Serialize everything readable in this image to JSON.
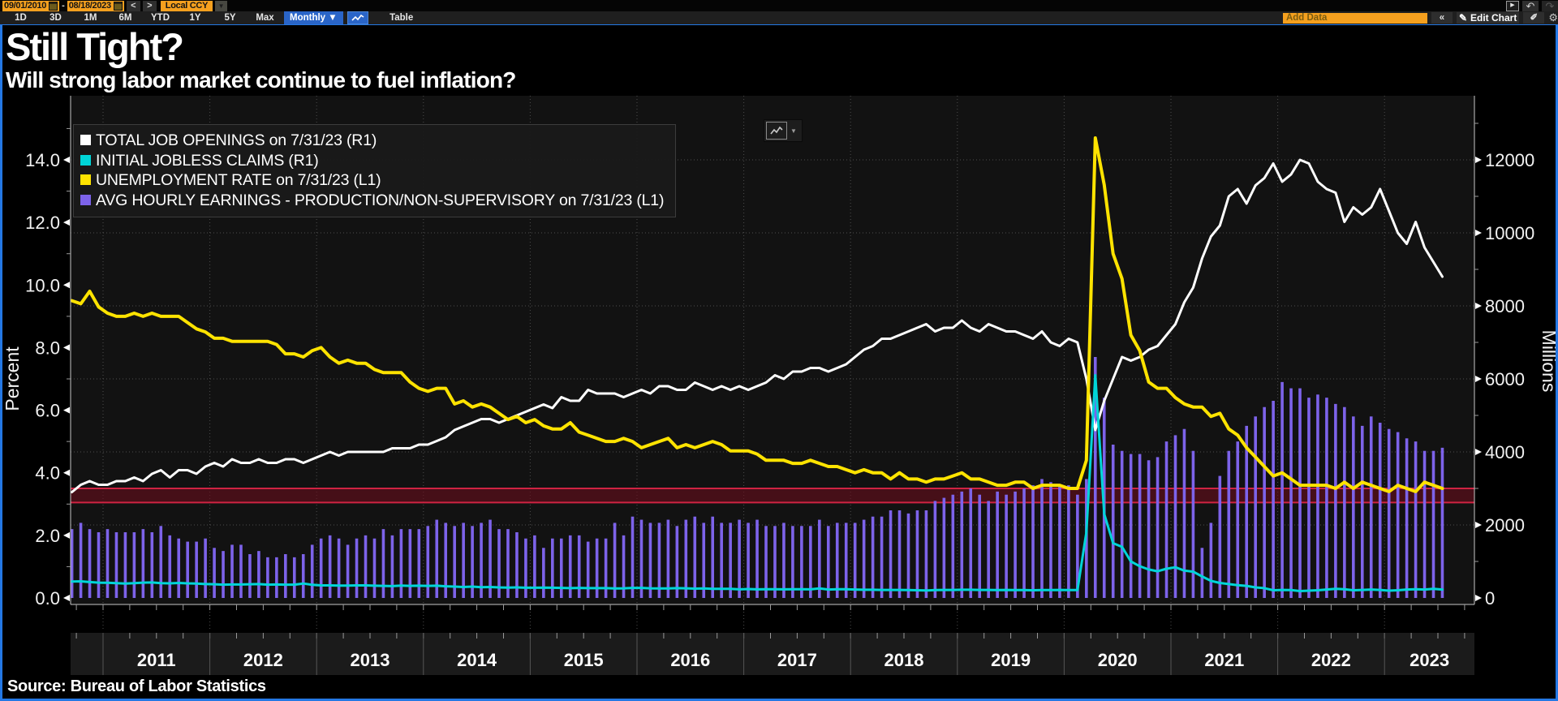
{
  "toolbar": {
    "date_start": "09/01/2010",
    "date_separator": "-",
    "date_end": "08/18/2023",
    "prev_label": "<",
    "next_label": ">",
    "currency": "Local CCY",
    "currency_arrow": "▼",
    "range_buttons": [
      "1D",
      "3D",
      "1M",
      "6M",
      "YTD",
      "1Y",
      "5Y",
      "Max"
    ],
    "period_selector": "Monthly ▼",
    "table_label": "Table",
    "popout_glyph": "▶",
    "undo_glyph": "↶",
    "redo_glyph": "↷",
    "add_data_placeholder": "Add Data",
    "collapse_label": "«",
    "edit_pencil": "✎",
    "edit_chart_label": "Edit Chart",
    "annotate_glyph": "✐",
    "gear_glyph": "⚙",
    "minibtn_arrow": "▼"
  },
  "header": {
    "title": "Still Tight?",
    "subtitle": "Will strong labor market continue to fuel inflation?"
  },
  "source": "Source: Bureau of Labor Statistics",
  "legend": [
    {
      "label": "TOTAL JOB OPENINGS on 7/31/23 (R1)",
      "color": "#ffffff"
    },
    {
      "label": "INITIAL JOBLESS CLAIMS (R1)",
      "color": "#00d5d8"
    },
    {
      "label": "UNEMPLOYMENT RATE on 7/31/23 (L1)",
      "color": "#ffe300"
    },
    {
      "label": "AVG HOURLY EARNINGS - PRODUCTION/NON-SUPERVISORY on 7/31/23 (L1)",
      "color": "#7d63ea"
    }
  ],
  "colors": {
    "amber": "#f5a01e",
    "blue_button": "#2a65c8",
    "panel_border": "#2478e4",
    "plot_bg": "#121212",
    "grid": "#4d4d4d",
    "axis_line": "#c8c8c8",
    "band_line": "#cf2342",
    "band_fill": "rgba(105,14,28,0.6)",
    "year_band_bg": "#1b1b1b",
    "year_separator": "#555555"
  },
  "chart_data": {
    "type": "mixed",
    "start": {
      "year": 2010,
      "month": 9
    },
    "frequency": "monthly",
    "left_axis": {
      "label": "Percent",
      "ticks": [
        0,
        2,
        4,
        6,
        8,
        10,
        12,
        14
      ],
      "range": [
        0,
        16
      ]
    },
    "right_axis": {
      "label": "Millions",
      "ticks": [
        0,
        2000,
        4000,
        6000,
        8000,
        10000,
        12000
      ],
      "range": [
        0,
        13760
      ]
    },
    "x_years": [
      2011,
      2012,
      2013,
      2014,
      2015,
      2016,
      2017,
      2018,
      2019,
      2020,
      2021,
      2022,
      2023
    ],
    "band": {
      "low": 3.05,
      "high": 3.5,
      "axis": "L1"
    },
    "series": [
      {
        "name": "TOTAL JOB OPENINGS",
        "axis": "R1",
        "type": "line",
        "color": "#ffffff",
        "width": 3,
        "values": [
          2900,
          3100,
          3200,
          3100,
          3100,
          3200,
          3200,
          3300,
          3200,
          3400,
          3500,
          3300,
          3500,
          3500,
          3400,
          3600,
          3700,
          3600,
          3800,
          3700,
          3700,
          3800,
          3700,
          3700,
          3800,
          3800,
          3700,
          3800,
          3900,
          4000,
          3900,
          4000,
          4000,
          4000,
          4000,
          4000,
          4100,
          4100,
          4100,
          4200,
          4200,
          4300,
          4400,
          4600,
          4700,
          4800,
          4900,
          4900,
          4800,
          4900,
          5000,
          5100,
          5200,
          5300,
          5200,
          5500,
          5400,
          5400,
          5700,
          5600,
          5600,
          5600,
          5500,
          5600,
          5700,
          5600,
          5800,
          5800,
          5700,
          5700,
          5900,
          5800,
          5700,
          5800,
          5700,
          5800,
          5700,
          5800,
          5900,
          6100,
          6000,
          6200,
          6200,
          6300,
          6300,
          6200,
          6300,
          6400,
          6600,
          6800,
          6900,
          7100,
          7100,
          7200,
          7300,
          7400,
          7500,
          7300,
          7400,
          7400,
          7600,
          7400,
          7300,
          7500,
          7400,
          7300,
          7300,
          7200,
          7100,
          7300,
          7000,
          6900,
          7100,
          7000,
          6000,
          4600,
          5400,
          6000,
          6600,
          6500,
          6600,
          6800,
          6900,
          7200,
          7500,
          8100,
          8500,
          9300,
          9900,
          10200,
          11000,
          11200,
          10800,
          11300,
          11500,
          11900,
          11400,
          11600,
          12000,
          11900,
          11400,
          11200,
          11100,
          10300,
          10700,
          10500,
          10700,
          11200,
          10600,
          10000,
          9700,
          10300,
          9600,
          9200,
          8800
        ]
      },
      {
        "name": "INITIAL JOBLESS CLAIMS",
        "axis": "R1",
        "type": "line",
        "color": "#00d5d8",
        "width": 3,
        "values": [
          450,
          455,
          435,
          420,
          415,
          405,
          395,
          405,
          420,
          425,
          405,
          400,
          410,
          400,
          395,
          380,
          375,
          365,
          370,
          370,
          375,
          380,
          365,
          370,
          365,
          365,
          395,
          360,
          345,
          345,
          340,
          340,
          345,
          345,
          335,
          330,
          325,
          340,
          330,
          335,
          330,
          335,
          320,
          310,
          300,
          310,
          295,
          300,
          290,
          285,
          290,
          280,
          280,
          285,
          280,
          275,
          270,
          275,
          270,
          270,
          270,
          260,
          265,
          275,
          275,
          265,
          260,
          260,
          270,
          265,
          255,
          260,
          250,
          250,
          250,
          235,
          245,
          235,
          240,
          240,
          235,
          240,
          240,
          235,
          260,
          230,
          240,
          240,
          230,
          225,
          225,
          220,
          220,
          220,
          215,
          210,
          205,
          215,
          220,
          220,
          225,
          225,
          220,
          220,
          215,
          220,
          215,
          215,
          210,
          215,
          215,
          220,
          215,
          215,
          1800,
          6100,
          2300,
          1500,
          1400,
          1000,
          870,
          780,
          730,
          800,
          840,
          750,
          720,
          590,
          470,
          410,
          380,
          350,
          330,
          290,
          270,
          210,
          220,
          215,
          190,
          200,
          210,
          230,
          250,
          240,
          210,
          220,
          230,
          220,
          200,
          210,
          230,
          240,
          230,
          250,
          230
        ]
      },
      {
        "name": "UNEMPLOYMENT RATE",
        "axis": "L1",
        "type": "line",
        "color": "#ffe300",
        "width": 4,
        "values": [
          9.5,
          9.4,
          9.8,
          9.3,
          9.1,
          9.0,
          9.0,
          9.1,
          9.0,
          9.1,
          9.0,
          9.0,
          9.0,
          8.8,
          8.6,
          8.5,
          8.3,
          8.3,
          8.2,
          8.2,
          8.2,
          8.2,
          8.2,
          8.1,
          7.8,
          7.8,
          7.7,
          7.9,
          8.0,
          7.7,
          7.5,
          7.6,
          7.5,
          7.5,
          7.3,
          7.2,
          7.2,
          7.2,
          6.9,
          6.7,
          6.6,
          6.7,
          6.7,
          6.2,
          6.3,
          6.1,
          6.2,
          6.1,
          5.9,
          5.7,
          5.8,
          5.6,
          5.7,
          5.5,
          5.4,
          5.4,
          5.6,
          5.3,
          5.2,
          5.1,
          5.0,
          5.0,
          5.1,
          5.0,
          4.8,
          4.9,
          5.0,
          5.1,
          4.8,
          4.9,
          4.8,
          4.9,
          5.0,
          4.9,
          4.7,
          4.7,
          4.7,
          4.6,
          4.4,
          4.4,
          4.4,
          4.3,
          4.3,
          4.4,
          4.3,
          4.2,
          4.2,
          4.1,
          4.0,
          4.1,
          4.0,
          4.0,
          3.8,
          4.0,
          3.8,
          3.8,
          3.7,
          3.8,
          3.8,
          3.9,
          4.0,
          3.8,
          3.8,
          3.7,
          3.6,
          3.6,
          3.7,
          3.7,
          3.5,
          3.6,
          3.6,
          3.6,
          3.5,
          3.5,
          4.4,
          14.7,
          13.2,
          11.0,
          10.2,
          8.4,
          7.9,
          6.9,
          6.7,
          6.7,
          6.4,
          6.2,
          6.1,
          6.1,
          5.8,
          5.9,
          5.4,
          5.2,
          4.8,
          4.5,
          4.2,
          3.9,
          4.0,
          3.8,
          3.6,
          3.6,
          3.6,
          3.6,
          3.5,
          3.7,
          3.5,
          3.7,
          3.6,
          3.5,
          3.4,
          3.6,
          3.5,
          3.4,
          3.7,
          3.6,
          3.5
        ]
      },
      {
        "name": "AVG HOURLY EARNINGS - PRODUCTION/NON-SUPERVISORY",
        "axis": "L1",
        "type": "bar",
        "color": "#7d63ea",
        "width": 3.6,
        "values": [
          2.2,
          2.4,
          2.2,
          2.1,
          2.2,
          2.1,
          2.1,
          2.1,
          2.2,
          2.1,
          2.3,
          2.0,
          1.9,
          1.8,
          1.8,
          1.9,
          1.6,
          1.5,
          1.7,
          1.7,
          1.4,
          1.5,
          1.3,
          1.3,
          1.4,
          1.3,
          1.4,
          1.7,
          1.9,
          2.0,
          1.9,
          1.7,
          1.9,
          2.0,
          1.9,
          2.2,
          2.0,
          2.2,
          2.2,
          2.2,
          2.3,
          2.5,
          2.4,
          2.3,
          2.4,
          2.3,
          2.4,
          2.5,
          2.2,
          2.2,
          2.1,
          1.9,
          2.0,
          1.6,
          1.9,
          1.9,
          2.0,
          2.0,
          1.8,
          1.9,
          1.9,
          2.4,
          2.0,
          2.6,
          2.5,
          2.4,
          2.4,
          2.5,
          2.3,
          2.5,
          2.6,
          2.4,
          2.6,
          2.4,
          2.4,
          2.5,
          2.4,
          2.5,
          2.3,
          2.3,
          2.4,
          2.3,
          2.3,
          2.3,
          2.5,
          2.3,
          2.4,
          2.4,
          2.4,
          2.5,
          2.6,
          2.6,
          2.8,
          2.8,
          2.7,
          2.8,
          2.8,
          3.1,
          3.2,
          3.3,
          3.4,
          3.5,
          3.3,
          3.1,
          3.4,
          3.3,
          3.4,
          3.5,
          3.6,
          3.8,
          3.7,
          3.6,
          3.6,
          3.3,
          3.8,
          7.7,
          6.4,
          4.9,
          4.7,
          4.6,
          4.6,
          4.4,
          4.5,
          5.0,
          5.2,
          5.4,
          4.7,
          1.6,
          2.4,
          3.9,
          4.7,
          5.0,
          5.5,
          5.8,
          6.1,
          6.3,
          6.9,
          6.7,
          6.7,
          6.4,
          6.5,
          6.4,
          6.2,
          6.1,
          5.8,
          5.5,
          5.8,
          5.6,
          5.4,
          5.3,
          5.1,
          5.0,
          4.7,
          4.7,
          4.8
        ]
      }
    ]
  }
}
